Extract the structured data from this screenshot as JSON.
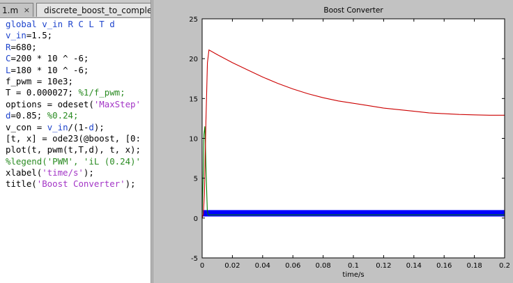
{
  "editor": {
    "tabs": [
      {
        "label": "1.m",
        "close": "×"
      },
      {
        "label": "discrete_boost_to_complet"
      }
    ],
    "lines": [
      [
        {
          "t": "global v_in R C L T d",
          "c": "kw"
        }
      ],
      [
        {
          "t": "v_in",
          "c": "kw"
        },
        {
          "t": "=1.5;",
          "c": ""
        }
      ],
      [
        {
          "t": "R",
          "c": "kw"
        },
        {
          "t": "=680;",
          "c": ""
        }
      ],
      [
        {
          "t": "C",
          "c": "kw"
        },
        {
          "t": "=200 * 10 ^ -6;",
          "c": ""
        }
      ],
      [
        {
          "t": "L",
          "c": "kw"
        },
        {
          "t": "=180 * 10 ^ -6;",
          "c": ""
        }
      ],
      [
        {
          "t": "f_pwm = 10e3;",
          "c": ""
        }
      ],
      [
        {
          "t": "T = 0.000027; ",
          "c": ""
        },
        {
          "t": "%1/f_pwm;",
          "c": "cm"
        }
      ],
      [
        {
          "t": "options = odeset(",
          "c": ""
        },
        {
          "t": "'MaxStep'",
          "c": "str"
        }
      ],
      [
        {
          "t": "d",
          "c": "kw"
        },
        {
          "t": "=0.85; ",
          "c": ""
        },
        {
          "t": "%0.24;",
          "c": "cm"
        }
      ],
      [
        {
          "t": "v_con = ",
          "c": ""
        },
        {
          "t": "v_in",
          "c": "kw"
        },
        {
          "t": "/(1-",
          "c": ""
        },
        {
          "t": "d",
          "c": "kw"
        },
        {
          "t": ");",
          "c": ""
        }
      ],
      [
        {
          "t": "[t, x] = ode23(@boost, [0:",
          "c": ""
        }
      ],
      [
        {
          "t": "plot(t, pwm(t,T,d), t, x);",
          "c": ""
        }
      ],
      [
        {
          "t": "%legend('PWM', 'iL (0.24)'",
          "c": "cm"
        }
      ],
      [
        {
          "t": "xlabel(",
          "c": ""
        },
        {
          "t": "'time/s'",
          "c": "str"
        },
        {
          "t": ");",
          "c": ""
        }
      ],
      [
        {
          "t": "title(",
          "c": ""
        },
        {
          "t": "'Boost Converter'",
          "c": "str"
        },
        {
          "t": ");",
          "c": ""
        }
      ]
    ]
  },
  "figure": {
    "chart_data": {
      "type": "line",
      "title": "Boost Converter",
      "xlabel": "time/s",
      "ylabel": "",
      "xlim": [
        0,
        0.2
      ],
      "ylim": [
        -5,
        25
      ],
      "xticks": [
        0,
        0.02,
        0.04,
        0.06,
        0.08,
        0.1,
        0.12,
        0.14,
        0.16,
        0.18,
        0.2
      ],
      "xtick_labels": [
        "0",
        "0.02",
        "0.04",
        "0.06",
        "0.08",
        "0.1",
        "0.12",
        "0.14",
        "0.16",
        "0.18",
        "0.2"
      ],
      "yticks": [
        -5,
        0,
        5,
        10,
        15,
        20,
        25
      ],
      "ytick_labels": [
        "-5",
        "0",
        "5",
        "10",
        "15",
        "20",
        "25"
      ],
      "grid": false,
      "series": [
        {
          "color": "#0000ff",
          "kind": "band",
          "x": [
            0.0005,
            0.2
          ],
          "y_low": 0.2,
          "y_high": 1.0
        },
        {
          "color": "#007f00",
          "kind": "line",
          "x": [
            0,
            0.0008,
            0.0012,
            0.0018,
            0.0022,
            0.0026,
            0.003,
            0.0034,
            0.004,
            0.02,
            0.06,
            0.1,
            0.14,
            0.18,
            0.2
          ],
          "y": [
            0,
            6.0,
            10.5,
            11.5,
            9.0,
            6.0,
            3.5,
            1.0,
            0.4,
            0.4,
            0.4,
            0.4,
            0.4,
            0.4,
            0.4
          ]
        },
        {
          "color": "#cc0000",
          "kind": "line",
          "x": [
            0,
            0.0008,
            0.0015,
            0.0025,
            0.0035,
            0.0045,
            0.01,
            0.02,
            0.03,
            0.04,
            0.05,
            0.06,
            0.07,
            0.08,
            0.09,
            0.1,
            0.11,
            0.12,
            0.13,
            0.14,
            0.15,
            0.16,
            0.17,
            0.18,
            0.19,
            0.2
          ],
          "y": [
            0,
            0.5,
            3.0,
            12.0,
            19.5,
            21.1,
            20.5,
            19.5,
            18.6,
            17.7,
            16.9,
            16.2,
            15.6,
            15.1,
            14.7,
            14.4,
            14.1,
            13.8,
            13.6,
            13.4,
            13.2,
            13.1,
            13.0,
            12.95,
            12.9,
            12.9
          ]
        }
      ]
    }
  }
}
